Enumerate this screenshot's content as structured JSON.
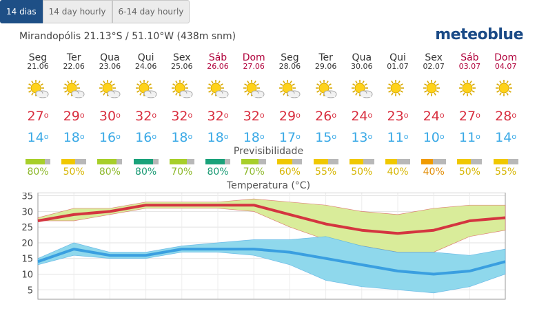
{
  "tabs": [
    {
      "label": "14 dias",
      "active": true
    },
    {
      "label": "14 day hourly",
      "active": false
    },
    {
      "label": "6-14 day hourly",
      "active": false
    }
  ],
  "location": "Mirandopólis  21.13°S / 51.10°W (438m snm)",
  "brand": "meteoblue",
  "degree": "o",
  "days": [
    {
      "name": "Seg",
      "date": "21.06",
      "weekend": false,
      "icon": "sun-cloud-icon",
      "tmax": "27",
      "tmin": "14",
      "pred": "80%",
      "predColor": "#a7cf2a",
      "predTextColor": "#8db82a"
    },
    {
      "name": "Ter",
      "date": "22.06",
      "weekend": false,
      "icon": "sun-cloud-icon",
      "tmax": "29",
      "tmin": "18",
      "pred": "50%",
      "predColor": "#f0c800",
      "predTextColor": "#d6b500"
    },
    {
      "name": "Qua",
      "date": "23.06",
      "weekend": false,
      "icon": "sun-cloud-icon",
      "tmax": "30",
      "tmin": "16",
      "pred": "80%",
      "predColor": "#a7cf2a",
      "predTextColor": "#8db82a"
    },
    {
      "name": "Qui",
      "date": "24.06",
      "weekend": false,
      "icon": "sun-cloud-icon",
      "tmax": "32",
      "tmin": "16",
      "pred": "80%",
      "predColor": "#1aa27a",
      "predTextColor": "#1a9a74"
    },
    {
      "name": "Sex",
      "date": "25.06",
      "weekend": false,
      "icon": "sun-cloud-icon",
      "tmax": "32",
      "tmin": "18",
      "pred": "70%",
      "predColor": "#a7cf2a",
      "predTextColor": "#8db82a"
    },
    {
      "name": "Sáb",
      "date": "26.06",
      "weekend": true,
      "icon": "sun-cloud-icon",
      "tmax": "32",
      "tmin": "18",
      "pred": "80%",
      "predColor": "#1aa27a",
      "predTextColor": "#1a9a74"
    },
    {
      "name": "Dom",
      "date": "27.06",
      "weekend": true,
      "icon": "sun-cloud-icon",
      "tmax": "32",
      "tmin": "18",
      "pred": "70%",
      "predColor": "#a7cf2a",
      "predTextColor": "#8db82a"
    },
    {
      "name": "Seg",
      "date": "28.06",
      "weekend": false,
      "icon": "sun-cloud-icon",
      "tmax": "29",
      "tmin": "17",
      "pred": "60%",
      "predColor": "#f0c800",
      "predTextColor": "#d6b500"
    },
    {
      "name": "Ter",
      "date": "29.06",
      "weekend": false,
      "icon": "sun-cloud-icon",
      "tmax": "26",
      "tmin": "15",
      "pred": "55%",
      "predColor": "#f0c800",
      "predTextColor": "#d6b500"
    },
    {
      "name": "Qua",
      "date": "30.06",
      "weekend": false,
      "icon": "sun-cloud-icon",
      "tmax": "24",
      "tmin": "13",
      "pred": "50%",
      "predColor": "#f0c800",
      "predTextColor": "#d6b500"
    },
    {
      "name": "Qui",
      "date": "01.07",
      "weekend": false,
      "icon": "sun-icon",
      "tmax": "23",
      "tmin": "11",
      "pred": "40%",
      "predColor": "#f0c800",
      "predTextColor": "#d6b500"
    },
    {
      "name": "Sex",
      "date": "02.07",
      "weekend": false,
      "icon": "sun-icon",
      "tmax": "24",
      "tmin": "10",
      "pred": "40%",
      "predColor": "#f09a00",
      "predTextColor": "#e08a00"
    },
    {
      "name": "Sáb",
      "date": "03.07",
      "weekend": true,
      "icon": "sun-icon",
      "tmax": "27",
      "tmin": "11",
      "pred": "50%",
      "predColor": "#f0c800",
      "predTextColor": "#d6b500"
    },
    {
      "name": "Dom",
      "date": "04.07",
      "weekend": true,
      "icon": "sun-icon",
      "tmax": "28",
      "tmin": "14",
      "pred": "55%",
      "predColor": "#f0c800",
      "predTextColor": "#d6b500"
    }
  ],
  "previsibilidade_label": "Previsibilidade",
  "temperatura_label": "Temperatura (°C)",
  "chart_data": {
    "type": "area",
    "title": "Temperatura (°C)",
    "x": [
      "21.06",
      "22.06",
      "23.06",
      "24.06",
      "25.06",
      "26.06",
      "27.06",
      "28.06",
      "29.06",
      "30.06",
      "01.07",
      "02.07",
      "03.07",
      "04.07"
    ],
    "ylim": [
      2,
      36
    ],
    "yticks": [
      5,
      10,
      15,
      20,
      25,
      30,
      35
    ],
    "grid": true,
    "series": [
      {
        "name": "max",
        "color": "#d43540",
        "values": [
          27,
          29,
          30,
          32,
          32,
          32,
          32,
          29,
          26,
          24,
          23,
          24,
          27,
          28
        ],
        "band_low": [
          27,
          27,
          29,
          31,
          31,
          31,
          30,
          25,
          21,
          19,
          17,
          17,
          22,
          24
        ],
        "band_high": [
          28,
          31,
          31,
          33,
          33,
          33,
          34,
          33,
          32,
          30,
          29,
          31,
          32,
          32
        ],
        "band_color": "#d9ec9a"
      },
      {
        "name": "min",
        "color": "#3a9fe0",
        "values": [
          14,
          18,
          16,
          16,
          18,
          18,
          18,
          17,
          15,
          13,
          11,
          10,
          11,
          14
        ],
        "band_low": [
          13,
          16,
          15,
          15,
          17,
          17,
          16,
          13,
          8,
          6,
          5,
          4,
          6,
          10
        ],
        "band_high": [
          15,
          20,
          17,
          17,
          19,
          20,
          21,
          21,
          22,
          19,
          17,
          17,
          16,
          18
        ],
        "band_color": "#8fd8ec"
      }
    ]
  }
}
